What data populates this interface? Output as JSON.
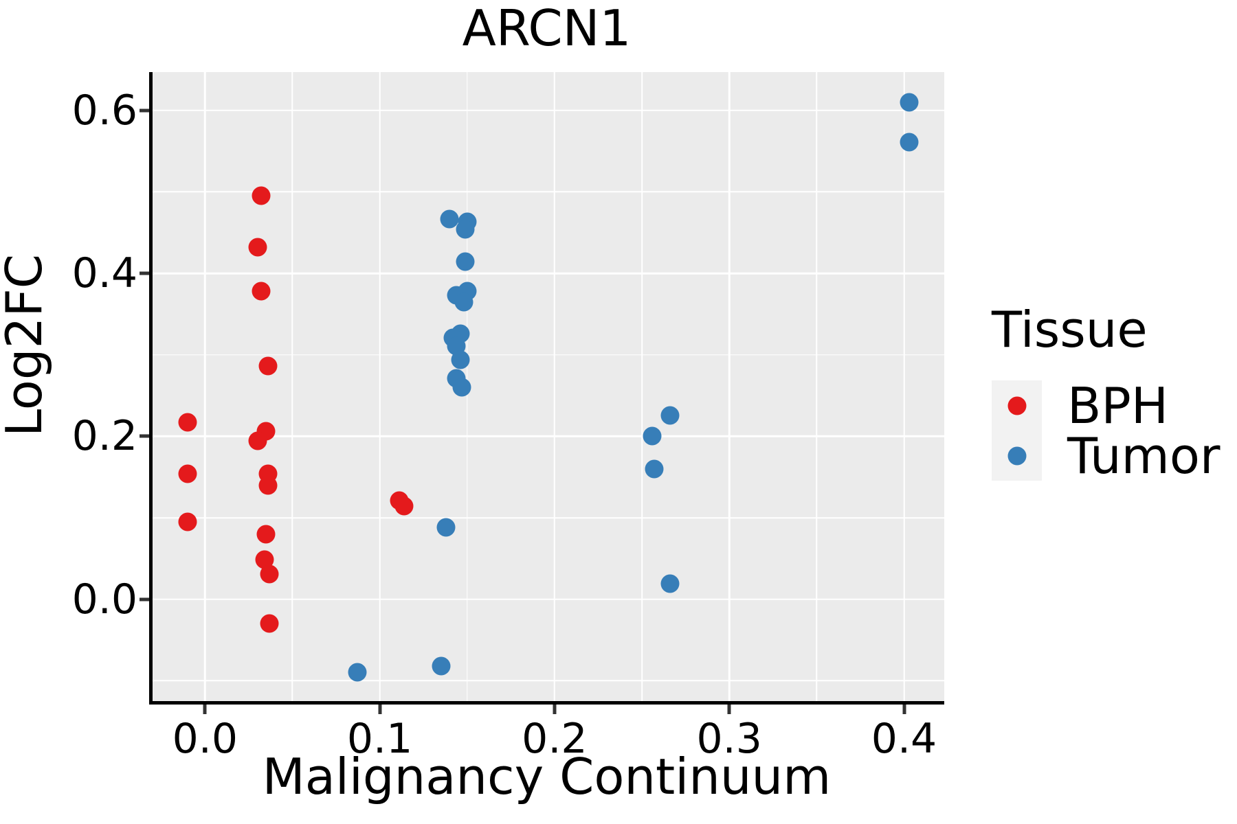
{
  "title": "ARCN1",
  "colors": {
    "bph": "#E41A1C",
    "tumor": "#377EB8",
    "panel_background": "#EBEBEB",
    "legend_key_background": "#F2F2F2",
    "gridline": "#FFFFFF",
    "axis_line": "#000000",
    "tick_mark": "#333333",
    "text": "#000000"
  },
  "legend": {
    "title": "Tissue",
    "items": [
      {
        "label": "BPH",
        "color": "#E41A1C"
      },
      {
        "label": "Tumor",
        "color": "#377EB8"
      }
    ]
  },
  "chart_data": {
    "type": "scatter",
    "title": "ARCN1",
    "xlabel": "Malignancy Continuum",
    "ylabel": "Log2FC",
    "xlim": [
      -0.03,
      0.423
    ],
    "ylim": [
      -0.125,
      0.647
    ],
    "grid": true,
    "legend_position": "right",
    "x_ticks": {
      "values": [
        0.0,
        0.1,
        0.2,
        0.3,
        0.4
      ],
      "labels": [
        "0.0",
        "0.1",
        "0.2",
        "0.3",
        "0.4"
      ]
    },
    "y_ticks": {
      "values": [
        0.0,
        0.2,
        0.4,
        0.6
      ],
      "labels": [
        "0.0",
        "0.2",
        "0.4",
        "0.6"
      ]
    },
    "x_minor_gridlines": [
      0.05,
      0.15,
      0.25,
      0.35
    ],
    "y_minor_gridlines": [
      -0.1,
      0.1,
      0.3,
      0.5
    ],
    "series": [
      {
        "name": "BPH",
        "color": "#E41A1C",
        "points": [
          [
            -0.01,
            0.217
          ],
          [
            -0.01,
            0.154
          ],
          [
            -0.01,
            0.095
          ],
          [
            0.032,
            0.495
          ],
          [
            0.03,
            0.432
          ],
          [
            0.032,
            0.378
          ],
          [
            0.036,
            0.286
          ],
          [
            0.035,
            0.206
          ],
          [
            0.03,
            0.194
          ],
          [
            0.036,
            0.154
          ],
          [
            0.036,
            0.14
          ],
          [
            0.035,
            0.08
          ],
          [
            0.034,
            0.049
          ],
          [
            0.037,
            0.031
          ],
          [
            0.037,
            -0.03
          ],
          [
            0.111,
            0.121
          ],
          [
            0.114,
            0.114
          ]
        ]
      },
      {
        "name": "Tumor",
        "color": "#377EB8",
        "points": [
          [
            0.14,
            0.467
          ],
          [
            0.15,
            0.463
          ],
          [
            0.149,
            0.454
          ],
          [
            0.149,
            0.414
          ],
          [
            0.15,
            0.378
          ],
          [
            0.144,
            0.373
          ],
          [
            0.148,
            0.365
          ],
          [
            0.146,
            0.326
          ],
          [
            0.142,
            0.321
          ],
          [
            0.144,
            0.311
          ],
          [
            0.146,
            0.294
          ],
          [
            0.144,
            0.271
          ],
          [
            0.147,
            0.26
          ],
          [
            0.138,
            0.088
          ],
          [
            0.135,
            -0.082
          ],
          [
            0.087,
            -0.09
          ],
          [
            0.266,
            0.226
          ],
          [
            0.256,
            0.2
          ],
          [
            0.257,
            0.16
          ],
          [
            0.266,
            0.019
          ],
          [
            0.403,
            0.61
          ],
          [
            0.403,
            0.561
          ]
        ]
      }
    ]
  }
}
